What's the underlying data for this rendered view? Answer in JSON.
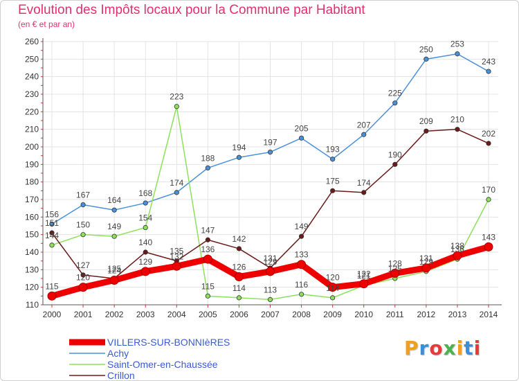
{
  "header": {
    "title": "Evolution des Impôts locaux pour la Commune par Habitant",
    "subtitle": "(en € et par an)"
  },
  "logo": {
    "text": "Proxiti",
    "colors": [
      "#f0a020",
      "#3a8fd8",
      "#e83a3a",
      "#4cb34c",
      "#f0a020",
      "#3a8fd8",
      "#e83a3a"
    ]
  },
  "chart_data": {
    "type": "line",
    "x": [
      2000,
      2001,
      2002,
      2003,
      2004,
      2005,
      2006,
      2007,
      2008,
      2009,
      2010,
      2011,
      2012,
      2013,
      2014
    ],
    "ylim": [
      110,
      260
    ],
    "yticks": [
      110,
      120,
      130,
      140,
      150,
      160,
      170,
      180,
      190,
      200,
      210,
      220,
      230,
      240,
      250,
      260
    ],
    "grid": true,
    "legend_position": "bottom-left",
    "series": [
      {
        "name": "VILLERS-SUR-BONNIèRES",
        "color": "#ee0000",
        "values": [
          115,
          120,
          124,
          129,
          132,
          136,
          126,
          129,
          133,
          120,
          122,
          128,
          131,
          138,
          143
        ]
      },
      {
        "name": "Achy",
        "color": "#4a90d9",
        "values": [
          156,
          167,
          164,
          168,
          174,
          188,
          194,
          197,
          205,
          193,
          207,
          225,
          250,
          253,
          243
        ]
      },
      {
        "name": "Saint-Omer-en-Chaussée",
        "color": "#8ee05a",
        "values": [
          144,
          150,
          149,
          154,
          223,
          115,
          114,
          113,
          116,
          114,
          121,
          125,
          129,
          136,
          170
        ]
      },
      {
        "name": "Crillon",
        "color": "#6b1a1a",
        "values": [
          151,
          127,
          125,
          140,
          135,
          147,
          142,
          131,
          149,
          175,
          174,
          190,
          209,
          210,
          202
        ]
      }
    ],
    "data_labels": [
      [
        "115",
        "120",
        "124",
        "129",
        "132",
        "136",
        "126",
        "129",
        "133",
        "120",
        "122",
        "128",
        "131",
        "138",
        "143"
      ],
      [
        "156",
        "167",
        "164",
        "168",
        "174",
        "188",
        "194",
        "197",
        "205",
        "193",
        "207",
        "225",
        "250",
        "253",
        "243"
      ],
      [
        "144",
        "150",
        "149",
        "154",
        "223",
        "115",
        "114",
        "113",
        "116",
        "114",
        "121",
        "125",
        "129",
        "136",
        "170"
      ],
      [
        "151",
        "127",
        "125",
        "140",
        "135",
        "147",
        "142",
        "131",
        "149",
        "175",
        "174",
        "190",
        "209",
        "210",
        "202"
      ]
    ]
  }
}
